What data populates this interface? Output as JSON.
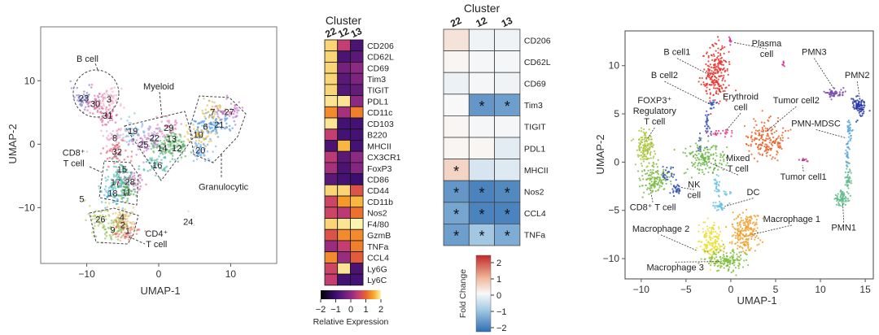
{
  "chart_data": [
    {
      "type": "scatter",
      "title": "",
      "xlabel": "UMAP-1",
      "ylabel": "UMAP-2",
      "xlim": [
        -16.4,
        16.4
      ],
      "ylim": [
        -18.8,
        18.5
      ],
      "xticks": [
        -10,
        0,
        10
      ],
      "yticks": [
        -10,
        0,
        10
      ],
      "clusters": [
        {
          "id": "23",
          "x": -10.4,
          "y": 7.3,
          "color": "#6d6fc4"
        },
        {
          "id": "30",
          "x": -8.8,
          "y": 6.4,
          "color": "#e0609a"
        },
        {
          "id": "3",
          "x": -6.9,
          "y": 7.1,
          "color": "#f0a0b8"
        },
        {
          "id": "31",
          "x": -7.1,
          "y": 4.5,
          "color": "#d9508a"
        },
        {
          "id": "19",
          "x": -3.6,
          "y": 2.1,
          "color": "#70b8e8"
        },
        {
          "id": "8",
          "x": -6.1,
          "y": 1.0,
          "color": "#e8a0c0"
        },
        {
          "id": "29",
          "x": 1.4,
          "y": 2.6,
          "color": "#e070b0"
        },
        {
          "id": "22",
          "x": -0.6,
          "y": 1.0,
          "color": "#b088d0"
        },
        {
          "id": "13",
          "x": 1.8,
          "y": 0.9,
          "color": "#60c070"
        },
        {
          "id": "25",
          "x": -2.1,
          "y": 0.0,
          "color": "#c070c8"
        },
        {
          "id": "14",
          "x": 0.5,
          "y": -0.6,
          "color": "#50b060"
        },
        {
          "id": "12",
          "x": 2.5,
          "y": -0.6,
          "color": "#40a850"
        },
        {
          "id": "32",
          "x": -5.8,
          "y": -1.2,
          "color": "#e04860"
        },
        {
          "id": "16",
          "x": -0.2,
          "y": -3.3,
          "color": "#40b0a0"
        },
        {
          "id": "15",
          "x": -5.1,
          "y": -3.9,
          "color": "#30a890"
        },
        {
          "id": "17",
          "x": -6.0,
          "y": -6.0,
          "color": "#40b8b0"
        },
        {
          "id": "28",
          "x": -4.0,
          "y": -5.9,
          "color": "#c060b0"
        },
        {
          "id": "18",
          "x": -6.4,
          "y": -7.7,
          "color": "#40a8e0"
        },
        {
          "id": "11",
          "x": -4.5,
          "y": -7.6,
          "color": "#30a040"
        },
        {
          "id": "5",
          "x": -10.7,
          "y": -8.6,
          "color": "#c0c060"
        },
        {
          "id": "26",
          "x": -8.1,
          "y": -11.8,
          "color": "#a0c050"
        },
        {
          "id": "4",
          "x": -5.1,
          "y": -11.5,
          "color": "#d0c060"
        },
        {
          "id": "2",
          "x": -5.0,
          "y": -12.7,
          "color": "#e0b060"
        },
        {
          "id": "9",
          "x": -6.4,
          "y": -13.5,
          "color": "#80b840"
        },
        {
          "id": "1",
          "x": -4.3,
          "y": -13.6,
          "color": "#e06050"
        },
        {
          "id": "24",
          "x": 4.1,
          "y": -12.2,
          "color": "#cccccc"
        },
        {
          "id": "7",
          "x": 7.5,
          "y": 5.1,
          "color": "#d0b040"
        },
        {
          "id": "27",
          "x": 9.8,
          "y": 5.1,
          "color": "#c060c0"
        },
        {
          "id": "6",
          "x": 6.5,
          "y": 2.8,
          "color": "#4090e0"
        },
        {
          "id": "21",
          "x": 8.4,
          "y": 3.1,
          "color": "#3888d8"
        },
        {
          "id": "10",
          "x": 5.5,
          "y": 1.5,
          "color": "#e0b030"
        },
        {
          "id": "20",
          "x": 5.8,
          "y": -0.9,
          "color": "#60a8f0"
        }
      ],
      "groups": [
        {
          "lines": [
            "B cell"
          ],
          "x": -9.9,
          "y": 13.0
        },
        {
          "lines": [
            "Myeloid"
          ],
          "x": 0.0,
          "y": 8.6
        },
        {
          "lines": [
            "Granulocytic"
          ],
          "x": 9.0,
          "y": -7.2
        },
        {
          "lines": [
            "CD8⁺",
            "T cell"
          ],
          "x": -11.8,
          "y": -1.8
        },
        {
          "lines": [
            "CD4⁺",
            "T cell"
          ],
          "x": -0.3,
          "y": -14.6
        }
      ]
    },
    {
      "type": "heatmap",
      "title": "Cluster",
      "columns": [
        "22",
        "12",
        "13"
      ],
      "rows": [
        "CD206",
        "CD62L",
        "CD69",
        "Tim3",
        "TIGIT",
        "PDL1",
        "CD11c",
        "CD103",
        "B220",
        "MHCII",
        "CX3CR1",
        "FoxP3",
        "CD86",
        "CD44",
        "CD11b",
        "Nos2",
        "F4/80",
        "GzmB",
        "TNFa",
        "CCL4",
        "Ly6G",
        "Ly6C"
      ],
      "values": [
        [
          1.8,
          0.5,
          -0.8
        ],
        [
          1.8,
          -0.8,
          -0.6
        ],
        [
          1.8,
          -0.3,
          0.0
        ],
        [
          1.8,
          -0.6,
          -0.2
        ],
        [
          1.8,
          -0.7,
          -0.5
        ],
        [
          1.9,
          1.9,
          0.0
        ],
        [
          1.3,
          0.2,
          1.2
        ],
        [
          1.9,
          -0.9,
          -0.9
        ],
        [
          0.5,
          -0.9,
          -0.9
        ],
        [
          -0.8,
          1.6,
          -0.9
        ],
        [
          0.4,
          -0.6,
          0.0
        ],
        [
          0.2,
          -0.8,
          -0.1
        ],
        [
          -0.6,
          -0.9,
          -1.0
        ],
        [
          1.8,
          1.8,
          0.8
        ],
        [
          0.6,
          1.4,
          1.6
        ],
        [
          0.6,
          0.4,
          1.1
        ],
        [
          1.8,
          1.9,
          2.0
        ],
        [
          0.8,
          1.3,
          1.3
        ],
        [
          0.1,
          0.5,
          1.2
        ],
        [
          1.3,
          0.1,
          0.9
        ],
        [
          0.6,
          1.9,
          -0.8
        ],
        [
          0.5,
          -0.9,
          -0.9
        ]
      ],
      "colorscale": "inferno",
      "range": [
        -2,
        2
      ],
      "colorbar_ticks": [
        "−2",
        "−1",
        "0",
        "1",
        "2"
      ],
      "colorbar_label": "Relative Expression"
    },
    {
      "type": "heatmap",
      "title": "Cluster",
      "columns": [
        "22",
        "12",
        "13"
      ],
      "rows": [
        "CD206",
        "CD62L",
        "CD69",
        "Tim3",
        "TIGIT",
        "PDL1",
        "MHCII",
        "Nos2",
        "CCL4",
        "TNFa"
      ],
      "values": [
        [
          0.3,
          -0.1,
          -0.1
        ],
        [
          0.05,
          -0.05,
          -0.05
        ],
        [
          -0.15,
          -0.05,
          -0.1
        ],
        [
          0.0,
          -1.7,
          -1.6
        ],
        [
          0.05,
          -0.05,
          -0.05
        ],
        [
          0.05,
          0.05,
          -0.25
        ],
        [
          0.5,
          -0.4,
          -0.3
        ],
        [
          -1.7,
          -2.0,
          -1.9
        ],
        [
          -1.5,
          -2.0,
          -2.0
        ],
        [
          -1.6,
          -1.0,
          -1.4
        ]
      ],
      "significant": [
        [
          false,
          false,
          false
        ],
        [
          false,
          false,
          false
        ],
        [
          false,
          false,
          false
        ],
        [
          false,
          true,
          true
        ],
        [
          false,
          false,
          false
        ],
        [
          false,
          false,
          false
        ],
        [
          true,
          false,
          false
        ],
        [
          true,
          true,
          true
        ],
        [
          true,
          true,
          true
        ],
        [
          true,
          true,
          true
        ]
      ],
      "sig_marker": "*",
      "colorscale": "RdBu",
      "range": [
        -2.3,
        2.3
      ],
      "colorbar_ticks": [
        "2",
        "1",
        "0",
        "−1",
        "−2"
      ],
      "colorbar_label": "Fold Change"
    },
    {
      "type": "scatter",
      "title": "",
      "xlabel": "UMAP-1",
      "ylabel": "UMAP-2",
      "xlim": [
        -11.8,
        15.9
      ],
      "ylim": [
        -12.1,
        13.6
      ],
      "xticks": [
        -10,
        -5,
        0,
        5,
        10,
        15
      ],
      "yticks": [
        -10,
        -5,
        0,
        5,
        10
      ],
      "clusters": [
        {
          "name": "B cell1",
          "color": "#e8312a",
          "shape": [
            [
              -1.6,
              9.2,
              1.1,
              2.0,
              500
            ]
          ],
          "label": [
            -6.0,
            11.1
          ],
          "lines": [
            "B cell1"
          ],
          "pt": [
            -2.3,
            9.0
          ]
        },
        {
          "name": "B cell2",
          "color": "#3a55b4",
          "shape": [
            [
              -2.0,
              6.0,
              0.3,
              0.4,
              40
            ],
            [
              -2.6,
              4.0,
              0.2,
              1.2,
              60
            ],
            [
              -3.4,
              1.8,
              0.2,
              0.8,
              30
            ]
          ],
          "label": [
            -7.4,
            8.7
          ],
          "lines": [
            "B cell2"
          ],
          "pt": [
            -2.3,
            6.0
          ]
        },
        {
          "name": "Plasma cell",
          "color": "#d6338f",
          "shape": [
            [
              -0.1,
              12.6,
              0.12,
              0.3,
              20
            ],
            [
              5.9,
              10.1,
              0.12,
              0.25,
              15
            ]
          ],
          "label": [
            4.0,
            12.0
          ],
          "lines": [
            "Plasma",
            "cell"
          ],
          "pt": [
            0.3,
            12.4
          ]
        },
        {
          "name": "Erythroid cell",
          "color": "#e03c8a",
          "shape": [
            [
              -1.0,
              3.0,
              0.9,
              0.25,
              50
            ]
          ],
          "label": [
            1.1,
            6.5
          ],
          "lines": [
            "Erythroid",
            "cell"
          ],
          "pt": [
            -0.5,
            3.3
          ]
        },
        {
          "name": "Tumor cell2",
          "color": "#e8632a",
          "shape": [
            [
              4.0,
              2.3,
              1.5,
              1.3,
              400
            ]
          ],
          "label": [
            7.3,
            6.1
          ],
          "lines": [
            "Tumor cell2"
          ],
          "pt": [
            4.0,
            3.2
          ]
        },
        {
          "name": "Tumor cell1",
          "color": "#b7338f",
          "shape": [
            [
              8.2,
              0.2,
              0.3,
              0.2,
              25
            ]
          ],
          "label": [
            8.1,
            -1.8
          ],
          "lines": [
            "Tumor cell1"
          ],
          "pt": [
            8.0,
            -0.3
          ]
        },
        {
          "name": "FOXP3+ Regulatory T cell",
          "color": "#a8c43c",
          "shape": [
            [
              -9.5,
              1.5,
              0.7,
              1.3,
              300
            ]
          ],
          "label": [
            -8.5,
            6.1
          ],
          "lines": [
            "FOXP3⁺",
            "Regulatory",
            "T cell"
          ],
          "pt": [
            -9.4,
            2.3
          ]
        },
        {
          "name": "CD8+ T cell",
          "color": "#7cba45",
          "shape": [
            [
              -8.6,
              -1.8,
              1.2,
              1.0,
              300
            ]
          ],
          "label": [
            -8.7,
            -5.0
          ],
          "lines": [
            "CD8⁺ T cell"
          ],
          "pt": [
            -9.0,
            -2.8
          ]
        },
        {
          "name": "NK cell",
          "color": "#2e4fae",
          "shape": [
            [
              -7.2,
              -1.2,
              0.5,
              0.6,
              50
            ],
            [
              -6.1,
              -2.8,
              0.35,
              0.5,
              60
            ]
          ],
          "label": [
            -4.1,
            -2.6
          ],
          "lines": [
            "NK",
            "cell"
          ],
          "pt": [
            -5.7,
            -2.6
          ]
        },
        {
          "name": "Mixed T cell",
          "color": "#6fb84c",
          "shape": [
            [
              -3.0,
              0.3,
              1.6,
              1.2,
              350
            ]
          ],
          "label": [
            0.8,
            0.1
          ],
          "lines": [
            "Mixed",
            "T cell"
          ],
          "pt": [
            -2.5,
            0.0
          ]
        },
        {
          "name": "DC",
          "color": "#6cc3e0",
          "shape": [
            [
              -1.5,
              -2.5,
              0.3,
              0.9,
              60
            ],
            [
              -1.2,
              -4.6,
              0.5,
              0.4,
              80
            ],
            [
              -0.5,
              -3.2,
              0.5,
              0.2,
              20
            ]
          ],
          "label": [
            2.5,
            -3.4
          ],
          "lines": [
            "DC"
          ],
          "pt": [
            -0.7,
            -4.6
          ]
        },
        {
          "name": "Macrophage 1",
          "color": "#f0a030",
          "shape": [
            [
              1.5,
              -7.3,
              1.1,
              1.5,
              450
            ]
          ],
          "label": [
            6.8,
            -6.2
          ],
          "lines": [
            "Macrophage 1"
          ],
          "pt": [
            2.4,
            -7.5
          ]
        },
        {
          "name": "Macrophage 2",
          "color": "#ecdf3c",
          "shape": [
            [
              -2.2,
              -8.4,
              0.9,
              1.3,
              350
            ]
          ],
          "label": [
            -7.8,
            -7.2
          ],
          "lines": [
            "Macrophage 2"
          ],
          "pt": [
            -3.7,
            -9.2
          ]
        },
        {
          "name": "Macrophage 3",
          "color": "#80c040",
          "shape": [
            [
              -0.5,
              -10.2,
              1.4,
              0.8,
              350
            ]
          ],
          "label": [
            -6.2,
            -11.2
          ],
          "lines": [
            "Macrophage 3"
          ],
          "pt": [
            -1.2,
            -10.3
          ]
        },
        {
          "name": "PMN3",
          "color": "#7b4bb0",
          "shape": [
            [
              11.6,
              7.2,
              0.7,
              0.3,
              120
            ]
          ],
          "label": [
            9.3,
            11.1
          ],
          "lines": [
            "PMN3"
          ],
          "pt": [
            11.5,
            7.6
          ]
        },
        {
          "name": "PMN2",
          "color": "#2838a8",
          "shape": [
            [
              14.3,
              5.8,
              0.5,
              0.7,
              200
            ]
          ],
          "label": [
            14.1,
            8.7
          ],
          "lines": [
            "PMN2"
          ],
          "pt": [
            14.4,
            6.5
          ]
        },
        {
          "name": "PMN-MDSC",
          "color": "#5aa8dc",
          "shape": [
            [
              13.2,
              3.4,
              0.2,
              0.8,
              70
            ],
            [
              13.0,
              1.0,
              0.15,
              1.2,
              70
            ]
          ],
          "label": [
            9.5,
            3.7
          ],
          "lines": [
            "PMN-MDSC"
          ],
          "pt": [
            12.9,
            2.5
          ]
        },
        {
          "name": "PMN1",
          "color": "#5fb88a",
          "shape": [
            [
              13.1,
              -1.7,
              0.3,
              1.0,
              80
            ],
            [
              12.4,
              -3.7,
              0.6,
              0.6,
              150
            ]
          ],
          "label": [
            12.6,
            -7.1
          ],
          "lines": [
            "PMN1"
          ],
          "pt": [
            12.5,
            -4.3
          ]
        }
      ]
    }
  ]
}
